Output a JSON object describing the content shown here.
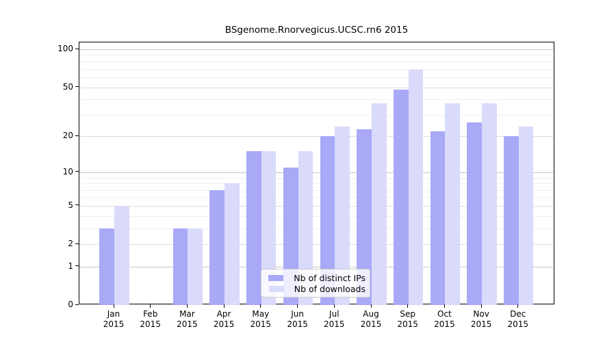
{
  "chart_data": {
    "type": "bar",
    "title": "BSgenome.Rnorvegicus.UCSC.rn6 2015",
    "categories": [
      "Jan 2015",
      "Feb 2015",
      "Mar 2015",
      "Apr 2015",
      "May 2015",
      "Jun 2015",
      "Jul 2015",
      "Aug 2015",
      "Sep 2015",
      "Oct 2015",
      "Nov 2015",
      "Dec 2015"
    ],
    "month_labels": [
      "Jan",
      "Feb",
      "Mar",
      "Apr",
      "May",
      "Jun",
      "Jul",
      "Aug",
      "Sep",
      "Oct",
      "Nov",
      "Dec"
    ],
    "year_label": "2015",
    "series": [
      {
        "name": "Nb of distinct IPs",
        "color": "#a9a9f8",
        "values": [
          3,
          0,
          3,
          7,
          15,
          11,
          20,
          23,
          48,
          22,
          26,
          20
        ]
      },
      {
        "name": "Nb of downloads",
        "color": "#dadafb",
        "values": [
          5,
          0,
          3,
          8,
          15,
          15,
          24,
          37,
          69,
          37,
          37,
          24
        ]
      }
    ],
    "yscale": "log1p",
    "yticks": [
      0,
      1,
      2,
      5,
      10,
      20,
      50,
      100
    ],
    "yticks_minor": [
      3,
      4,
      6,
      7,
      8,
      9,
      30,
      40,
      60,
      70,
      80,
      90
    ],
    "ylim": [
      0,
      115
    ],
    "xlabel": "",
    "ylabel": "",
    "grid": true,
    "legend_position": "bottom-center",
    "grid_colors": {
      "major": "#c6c6c6",
      "labeled": "#dcdcdc",
      "minor": "#efefef"
    }
  }
}
